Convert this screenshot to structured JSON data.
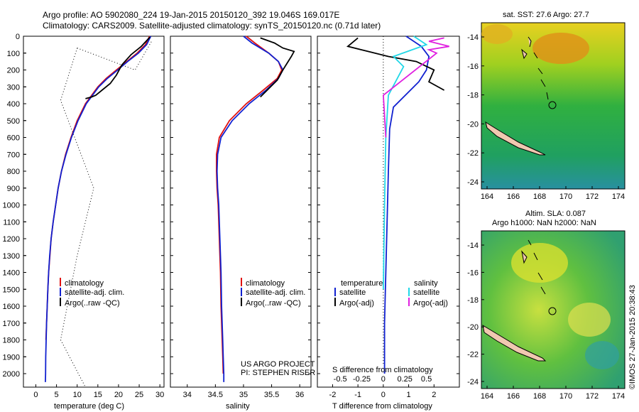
{
  "header": {
    "line1": "Argo profile: AO 5902080_224 19-Jan-2015 20150120_392 19.046S 169.017E",
    "line2": "Climatology: CARS2009. Satellite-adjusted climatology: synTS_20150120.nc (0.71d later)"
  },
  "colors": {
    "climatology": "#e01010",
    "satellite": "#1020d0",
    "argo": "#000000",
    "sat_salinity": "#20d8e8",
    "argo_salinity": "#e020e0"
  },
  "chart_data": [
    {
      "id": "temperature",
      "type": "line",
      "xlabel": "temperature (deg C)",
      "xlim": [
        -3,
        31
      ],
      "xticks": [
        0,
        5,
        10,
        15,
        20,
        25,
        30
      ],
      "ylim": [
        2080,
        0
      ],
      "yticks": [
        0,
        100,
        200,
        300,
        400,
        500,
        600,
        700,
        800,
        900,
        1000,
        1100,
        1200,
        1300,
        1400,
        1500,
        1600,
        1700,
        1800,
        1900,
        2000
      ],
      "legend": [
        "climatology",
        "satellite-adj. clim.",
        "Argo(..raw -QC)"
      ],
      "series": [
        {
          "name": "climatology",
          "color": "#e01010",
          "x": [
            27.5,
            26.5,
            24.5,
            22,
            19.5,
            17,
            15,
            12,
            10,
            8.5,
            7.2,
            6.2,
            5.4,
            4.8,
            4.2,
            3.7,
            3.4,
            3.1,
            2.9,
            2.75,
            2.6,
            2.45
          ],
          "y": [
            0,
            50,
            100,
            150,
            200,
            250,
            300,
            400,
            500,
            600,
            700,
            800,
            900,
            1000,
            1100,
            1200,
            1300,
            1400,
            1500,
            1600,
            1700,
            1800
          ]
        },
        {
          "name": "satellite-adj. clim.",
          "color": "#1020d0",
          "x": [
            27.8,
            26.8,
            24.8,
            22.2,
            19.8,
            17.3,
            15.2,
            12.2,
            10.2,
            8.6,
            7.3,
            6.2,
            5.4,
            4.8,
            4.2,
            3.7,
            3.35,
            3.1,
            2.9,
            2.75,
            2.6,
            2.5,
            2.4,
            2.35,
            2.3
          ],
          "y": [
            0,
            50,
            100,
            150,
            200,
            250,
            300,
            400,
            500,
            600,
            700,
            800,
            900,
            1000,
            1100,
            1200,
            1300,
            1400,
            1500,
            1600,
            1700,
            1800,
            1900,
            2000,
            2050
          ]
        },
        {
          "name": "Argo(..raw -QC)",
          "color": "#000000",
          "x": [
            27.6,
            25.5,
            23,
            20.8,
            19.5,
            18,
            16,
            14.5,
            13.5,
            12
          ],
          "y": [
            5,
            60,
            110,
            170,
            230,
            280,
            320,
            350,
            360,
            370
          ]
        }
      ]
    },
    {
      "id": "salinity",
      "type": "line",
      "xlabel": "salinity",
      "xlim": [
        33.7,
        36.2
      ],
      "xticks": [
        34,
        34.5,
        35,
        35.5,
        36
      ],
      "ylim": [
        2080,
        0
      ],
      "legend": [
        "climatology",
        "satellite-adj. clim.",
        "Argo(..raw -QC)"
      ],
      "annotation": [
        "US ARGO PROJECT",
        "PI: STEPHEN RISER"
      ],
      "series": [
        {
          "name": "climatology",
          "color": "#e01010",
          "x": [
            35.05,
            35.2,
            35.45,
            35.62,
            35.68,
            35.6,
            35.35,
            35.05,
            34.75,
            34.57,
            34.52,
            34.52,
            34.53,
            34.55,
            34.57,
            34.59,
            34.6,
            34.62,
            34.63,
            34.64
          ],
          "y": [
            0,
            40,
            100,
            150,
            200,
            250,
            320,
            400,
            500,
            600,
            700,
            800,
            900,
            1000,
            1200,
            1400,
            1600,
            1800,
            1900,
            2000
          ]
        },
        {
          "name": "satellite-adj. clim.",
          "color": "#1020d0",
          "x": [
            35.0,
            35.15,
            35.45,
            35.62,
            35.7,
            35.62,
            35.4,
            35.1,
            34.8,
            34.6,
            34.54,
            34.53,
            34.54,
            34.56,
            34.58,
            34.6,
            34.61,
            34.63,
            34.64,
            34.65,
            34.65
          ],
          "y": [
            0,
            40,
            100,
            150,
            200,
            250,
            320,
            400,
            500,
            600,
            700,
            800,
            900,
            1000,
            1200,
            1400,
            1600,
            1800,
            1900,
            2000,
            2050
          ]
        },
        {
          "name": "Argo(..raw -QC)",
          "color": "#000000",
          "x": [
            35.3,
            35.55,
            35.7,
            35.9,
            35.85,
            35.7,
            35.6,
            35.3
          ],
          "y": [
            10,
            40,
            70,
            90,
            120,
            200,
            260,
            360
          ]
        }
      ]
    },
    {
      "id": "difference",
      "type": "line",
      "xlabel": "T difference from climatology",
      "xlabel_top": "S difference from climatology",
      "xlim": [
        -2.6,
        3.0
      ],
      "xticks": [
        -2,
        -1,
        0,
        1,
        2
      ],
      "xticks_s": [
        -0.5,
        -0.25,
        0,
        0.25,
        0.5
      ],
      "ylim": [
        2080,
        0
      ],
      "legend_left_title": "temperature",
      "legend_right_title": "salinity",
      "legend": [
        "satellite",
        "Argo(-adj)",
        "satellite",
        "Argo(-adj)"
      ],
      "series": [
        {
          "name": "satellite",
          "color": "#1020d0",
          "x": [
            0.9,
            1.5,
            1.8,
            1.7,
            1.4,
            1.0,
            0.4,
            0.25,
            0.2,
            0.15,
            0.1,
            0.05,
            0.05
          ],
          "y": [
            0,
            60,
            120,
            200,
            270,
            330,
            420,
            550,
            800,
            1100,
            1400,
            1700,
            2000
          ]
        },
        {
          "name": "Argo(-adj)",
          "color": "#000000",
          "x": [
            -1.0,
            -1.4,
            -0.6,
            0.2,
            1.3,
            2.0,
            1.8,
            2.4
          ],
          "y": [
            10,
            60,
            90,
            120,
            150,
            200,
            270,
            320
          ]
        },
        {
          "name": "satellite",
          "color": "#20d8e8",
          "x": [
            1.2,
            1.7,
            0.4,
            0.8,
            0.2,
            0.1,
            0.05,
            0.0
          ],
          "y": [
            0,
            50,
            120,
            180,
            350,
            600,
            1000,
            1500
          ]
        },
        {
          "name": "Argo(-adj)",
          "color": "#e020e0",
          "x": [
            2.4,
            1.8,
            2.6,
            1.8,
            2.1,
            0.0,
            0.1
          ],
          "y": [
            10,
            30,
            60,
            80,
            100,
            350,
            600
          ]
        }
      ]
    }
  ],
  "maps": [
    {
      "title": "sat. SST: 27.6 Argo: 27.7",
      "xticks": [
        "164",
        "166",
        "168",
        "170",
        "172",
        "174"
      ],
      "yticks": [
        "-14",
        "-16",
        "-18",
        "-20",
        "-22",
        "-24"
      ]
    },
    {
      "title_line1": "Altim. SLA: 0.087",
      "title_line2": "Argo h1000: NaN h2000: NaN",
      "xticks": [
        "164",
        "166",
        "168",
        "170",
        "172",
        "174"
      ],
      "yticks": [
        "-14",
        "-16",
        "-18",
        "-20",
        "-22",
        "-24"
      ]
    }
  ],
  "credit": "©IMOS 27-Jan-2015 20:38:43"
}
